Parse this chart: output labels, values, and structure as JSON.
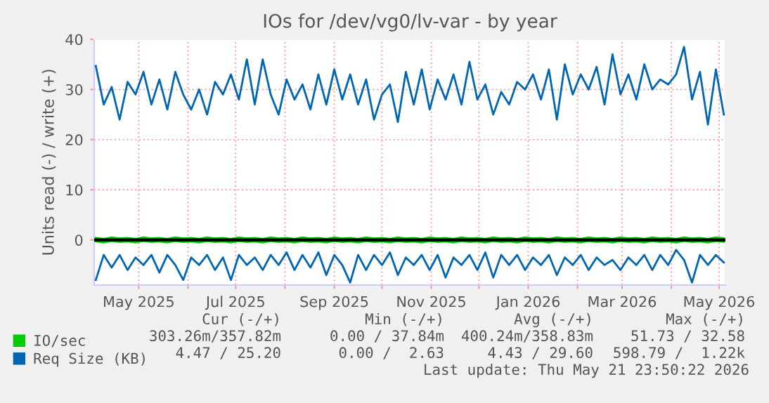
{
  "chart_data": {
    "type": "line",
    "title": "IOs for /dev/vg0/lv-var - by year",
    "ylabel": "Units read (-) / write (+)",
    "x": [
      "2025-04-04",
      "2025-04-09",
      "2025-04-14",
      "2025-04-19",
      "2025-04-24",
      "2025-04-29",
      "2025-05-04",
      "2025-05-09",
      "2025-05-14",
      "2025-05-19",
      "2025-05-24",
      "2025-05-29",
      "2025-06-03",
      "2025-06-08",
      "2025-06-13",
      "2025-06-18",
      "2025-06-23",
      "2025-06-28",
      "2025-07-03",
      "2025-07-08",
      "2025-07-13",
      "2025-07-18",
      "2025-07-23",
      "2025-07-28",
      "2025-08-02",
      "2025-08-07",
      "2025-08-12",
      "2025-08-17",
      "2025-08-22",
      "2025-08-27",
      "2025-09-01",
      "2025-09-06",
      "2025-09-11",
      "2025-09-16",
      "2025-09-21",
      "2025-09-26",
      "2025-10-01",
      "2025-10-06",
      "2025-10-11",
      "2025-10-16",
      "2025-10-21",
      "2025-10-26",
      "2025-10-31",
      "2025-11-05",
      "2025-11-10",
      "2025-11-15",
      "2025-11-20",
      "2025-11-25",
      "2025-11-30",
      "2025-12-05",
      "2025-12-10",
      "2025-12-15",
      "2025-12-20",
      "2025-12-25",
      "2025-12-30",
      "2026-01-04",
      "2026-01-09",
      "2026-01-14",
      "2026-01-19",
      "2026-01-24",
      "2026-01-29",
      "2026-02-03",
      "2026-02-08",
      "2026-02-13",
      "2026-02-18",
      "2026-02-23",
      "2026-02-28",
      "2026-03-05",
      "2026-03-10",
      "2026-03-15",
      "2026-03-20",
      "2026-03-25",
      "2026-03-30",
      "2026-04-04",
      "2026-04-09",
      "2026-04-14",
      "2026-04-19",
      "2026-04-24",
      "2026-04-29",
      "2026-05-04"
    ],
    "series": [
      {
        "name": "IO/sec",
        "color": "#00cc00",
        "values": [
          0.4,
          0.2,
          0.5,
          0.3,
          0.4,
          0.2,
          0.5,
          0.3,
          0.4,
          0.2,
          0.5,
          0.3,
          0.4,
          0.2,
          0.5,
          0.3,
          0.4,
          0.2,
          0.5,
          0.3,
          0.4,
          0.2,
          0.5,
          0.3,
          0.4,
          0.2,
          0.5,
          0.3,
          0.4,
          0.2,
          0.5,
          0.3,
          0.4,
          0.2,
          0.5,
          0.3,
          0.4,
          0.2,
          0.5,
          0.3,
          0.4,
          0.2,
          0.5,
          0.3,
          0.4,
          0.2,
          0.5,
          0.3,
          0.4,
          0.2,
          0.5,
          0.3,
          0.4,
          0.2,
          0.5,
          0.3,
          0.4,
          0.2,
          0.5,
          0.3,
          0.4,
          0.2,
          0.5,
          0.3,
          0.4,
          0.2,
          0.5,
          0.3,
          0.4,
          0.2,
          0.5,
          0.3,
          0.4,
          0.2,
          0.5,
          0.3,
          0.4,
          0.2,
          0.5,
          0.3
        ]
      },
      {
        "color": "#00cc00",
        "values": [
          -0.3,
          -0.5,
          -0.2,
          -0.4,
          -0.3,
          -0.5,
          -0.2,
          -0.4,
          -0.3,
          -0.5,
          -0.2,
          -0.4,
          -0.3,
          -0.5,
          -0.2,
          -0.4,
          -0.3,
          -0.5,
          -0.2,
          -0.4,
          -0.3,
          -0.5,
          -0.2,
          -0.4,
          -0.3,
          -0.5,
          -0.2,
          -0.4,
          -0.3,
          -0.5,
          -0.2,
          -0.4,
          -0.3,
          -0.5,
          -0.2,
          -0.4,
          -0.3,
          -0.5,
          -0.2,
          -0.4,
          -0.3,
          -0.5,
          -0.2,
          -0.4,
          -0.3,
          -0.5,
          -0.2,
          -0.4,
          -0.3,
          -0.5,
          -0.2,
          -0.4,
          -0.3,
          -0.5,
          -0.2,
          -0.4,
          -0.3,
          -0.5,
          -0.2,
          -0.4,
          -0.3,
          -0.5,
          -0.2,
          -0.4,
          -0.3,
          -0.5,
          -0.2,
          -0.4,
          -0.3,
          -0.5,
          -0.2,
          -0.4,
          -0.3,
          -0.5,
          -0.2,
          -0.4,
          -0.3,
          -0.5,
          -0.2,
          -0.4
        ]
      },
      {
        "name": "Req Size (KB)",
        "color": "#0066b3",
        "values": [
          34.7,
          27,
          30.5,
          24,
          31.5,
          29,
          33.5,
          27,
          32,
          26,
          33.5,
          29,
          26,
          30,
          25,
          31.5,
          29,
          33,
          28,
          36,
          27,
          36,
          29,
          25,
          32,
          28,
          31,
          26,
          33,
          27,
          34,
          28,
          33,
          27,
          32,
          24,
          29,
          31,
          23.5,
          33.5,
          27,
          34,
          26,
          32,
          28,
          33,
          27,
          35.5,
          28,
          31,
          25,
          29.5,
          27,
          31.5,
          30,
          33,
          28,
          34,
          24,
          35,
          29,
          33,
          30,
          34.5,
          27,
          37,
          29,
          33,
          28,
          35,
          30,
          32,
          31,
          33,
          38.5,
          28,
          33.5,
          23,
          34,
          25
        ]
      },
      {
        "color": "#0066b3",
        "values": [
          -8,
          -3,
          -5.5,
          -3,
          -6,
          -3.5,
          -5,
          -3,
          -6.5,
          -3,
          -5,
          -8,
          -3.5,
          -5,
          -3,
          -6,
          -3.5,
          -8,
          -3,
          -5,
          -3.5,
          -6,
          -3,
          -5,
          -2.5,
          -6,
          -3,
          -5.5,
          -2.5,
          -7,
          -3,
          -5,
          -8.5,
          -3,
          -6,
          -3,
          -5,
          -2.5,
          -7,
          -3.5,
          -5,
          -3,
          -6,
          -3,
          -7.5,
          -3.5,
          -5,
          -3,
          -6,
          -2.5,
          -7.5,
          -3,
          -5,
          -3,
          -6,
          -3.5,
          -5,
          -3,
          -7,
          -3.5,
          -5,
          -3,
          -6,
          -3.5,
          -5,
          -4,
          -6,
          -3.5,
          -5,
          -3,
          -6,
          -3,
          -5,
          -2,
          -4,
          -8.5,
          -3,
          -5,
          -3,
          -4.5
        ]
      }
    ],
    "xlim": [
      "2025-04-03",
      "2026-05-05"
    ],
    "xticks": [
      {
        "value": "2025-05-01",
        "label": "May 2025"
      },
      {
        "value": "2025-06-01",
        "label": null
      },
      {
        "value": "2025-07-01",
        "label": "Jul 2025"
      },
      {
        "value": "2025-08-01",
        "label": null
      },
      {
        "value": "2025-09-01",
        "label": "Sep 2025"
      },
      {
        "value": "2025-10-01",
        "label": null
      },
      {
        "value": "2025-11-01",
        "label": "Nov 2025"
      },
      {
        "value": "2025-12-01",
        "label": null
      },
      {
        "value": "2026-01-01",
        "label": "Jan 2026"
      },
      {
        "value": "2026-02-01",
        "label": null
      },
      {
        "value": "2026-03-01",
        "label": "Mar 2026"
      },
      {
        "value": "2026-04-01",
        "label": null
      },
      {
        "value": "2026-05-01",
        "label": "May 2026"
      }
    ],
    "ylim": [
      -9,
      40
    ],
    "yticks": [
      0,
      10,
      20,
      30,
      40
    ],
    "ref_lines": [
      {
        "axis": "y",
        "value": 0,
        "color": "#000000"
      }
    ],
    "grid": true,
    "legend": "bottom",
    "annotations": [
      "Cur (-/+)",
      "Min (-/+)",
      "Avg (-/+)",
      "Max (-/+)",
      "303.26m/357.82m",
      "0.00 / 37.84m",
      "400.24m/358.83m",
      "51.73 / 32.58",
      "4.47 / 25.20",
      "0.00 /  2.63",
      "4.43 / 29.60",
      "598.79 /  1.22k",
      "Last update: Thu May 21 23:50:22 2026"
    ]
  }
}
